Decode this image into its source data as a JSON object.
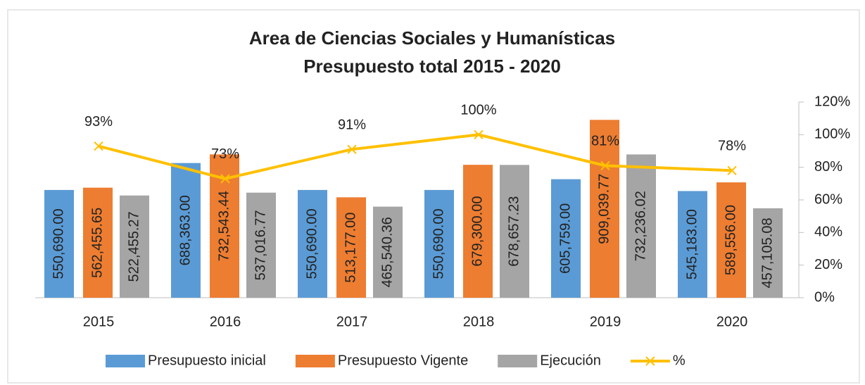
{
  "chart_data": {
    "type": "bar_line",
    "title": [
      "Area de Ciencias Sociales y Humanísticas",
      "Presupuesto total 2015 - 2020"
    ],
    "categories": [
      "2015",
      "2016",
      "2017",
      "2018",
      "2019",
      "2020"
    ],
    "ylim": [
      0,
      1000000
    ],
    "y2lim": [
      0,
      120
    ],
    "y2ticks": [
      {
        "value": 0,
        "label": "0%"
      },
      {
        "value": 20,
        "label": "20%"
      },
      {
        "value": 40,
        "label": "40%"
      },
      {
        "value": 60,
        "label": "60%"
      },
      {
        "value": 80,
        "label": "80%"
      },
      {
        "value": 100,
        "label": "100%"
      },
      {
        "value": 120,
        "label": "120%"
      }
    ],
    "legend": "bottom",
    "series": [
      {
        "name": "Presupuesto inicial",
        "color": "#5b9bd5",
        "values": [
          550690,
          688363,
          550690,
          550690,
          605759,
          545183
        ],
        "value_labels": [
          "550,690.00",
          "688,363.00",
          "550,690.00",
          "550,690.00",
          "605,759.00",
          "545,183.00"
        ]
      },
      {
        "name": "Presupuesto Vigente",
        "color": "#ed7d31",
        "values": [
          562455.65,
          732543.44,
          513177,
          679300,
          909039.77,
          589556
        ],
        "value_labels": [
          "562,455.65",
          "732,543.44",
          "513,177.00",
          "679,300.00",
          "909,039.77",
          "589,556.00"
        ]
      },
      {
        "name": "Ejecución",
        "color": "#a5a5a5",
        "values": [
          522455.27,
          537016.77,
          465540.36,
          678657.23,
          732236.02,
          457105.08
        ],
        "value_labels": [
          "522,455.27",
          "537,016.77",
          "465,540.36",
          "678,657.23",
          "732,236.02",
          "457,105.08"
        ]
      },
      {
        "name": "%",
        "color": "#ffc000",
        "axis": "y2",
        "type": "line",
        "values": [
          93,
          73,
          91,
          100,
          81,
          78
        ],
        "value_labels": [
          "93%",
          "73%",
          "91%",
          "100%",
          "81%",
          "78%"
        ]
      }
    ]
  }
}
